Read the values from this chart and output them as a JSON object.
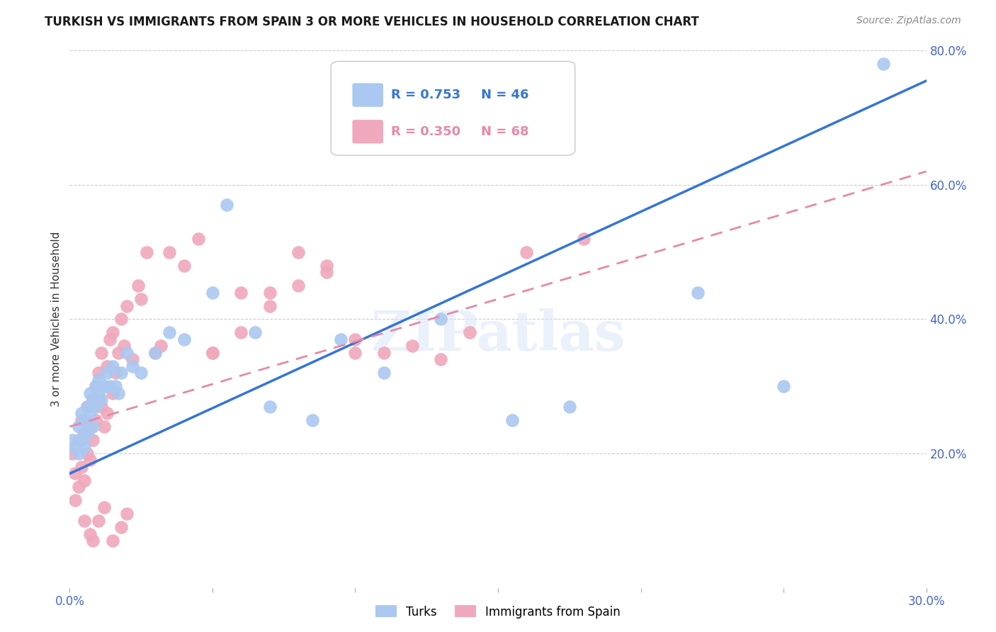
{
  "title": "TURKISH VS IMMIGRANTS FROM SPAIN 3 OR MORE VEHICLES IN HOUSEHOLD CORRELATION CHART",
  "source": "Source: ZipAtlas.com",
  "ylabel_left": "3 or more Vehicles in Household",
  "watermark_text": "ZIPatlas",
  "x_min": 0.0,
  "x_max": 0.3,
  "y_min": 0.0,
  "y_max": 0.8,
  "x_ticks": [
    0.0,
    0.05,
    0.1,
    0.15,
    0.2,
    0.25,
    0.3
  ],
  "x_tick_labels": [
    "0.0%",
    "",
    "",
    "",
    "",
    "",
    "30.0%"
  ],
  "y_ticks_right": [
    0.2,
    0.4,
    0.6,
    0.8
  ],
  "y_tick_labels_right": [
    "20.0%",
    "40.0%",
    "60.0%",
    "80.0%"
  ],
  "grid_color": "#cccccc",
  "background_color": "#ffffff",
  "turks_color": "#aac8f0",
  "spain_color": "#f0a8bc",
  "turks_line_color": "#3575d4",
  "spain_line_color": "#e888a8",
  "turks_R": "0.753",
  "turks_N": "46",
  "spain_R": "0.350",
  "spain_N": "68",
  "legend_label_turks": "Turks",
  "legend_label_spain": "Immigrants from Spain",
  "axis_tick_color": "#4466cc",
  "title_fontsize": 12,
  "turks_line_x0": 0.0,
  "turks_line_y0": 0.17,
  "turks_line_x1": 0.3,
  "turks_line_y1": 0.755,
  "spain_line_x0": 0.0,
  "spain_line_y0": 0.24,
  "spain_line_x1": 0.3,
  "spain_line_y1": 0.62,
  "turks_scatter_x": [
    0.001,
    0.002,
    0.003,
    0.003,
    0.004,
    0.004,
    0.005,
    0.005,
    0.005,
    0.006,
    0.006,
    0.007,
    0.007,
    0.008,
    0.008,
    0.009,
    0.009,
    0.01,
    0.01,
    0.011,
    0.012,
    0.013,
    0.014,
    0.015,
    0.016,
    0.017,
    0.018,
    0.02,
    0.022,
    0.025,
    0.03,
    0.035,
    0.04,
    0.05,
    0.055,
    0.065,
    0.07,
    0.085,
    0.095,
    0.11,
    0.13,
    0.155,
    0.175,
    0.22,
    0.25,
    0.285
  ],
  "turks_scatter_y": [
    0.22,
    0.21,
    0.2,
    0.24,
    0.22,
    0.26,
    0.23,
    0.25,
    0.21,
    0.27,
    0.23,
    0.29,
    0.26,
    0.28,
    0.24,
    0.3,
    0.27,
    0.29,
    0.31,
    0.28,
    0.3,
    0.32,
    0.3,
    0.33,
    0.3,
    0.29,
    0.32,
    0.35,
    0.33,
    0.32,
    0.35,
    0.38,
    0.37,
    0.44,
    0.57,
    0.38,
    0.27,
    0.25,
    0.37,
    0.32,
    0.4,
    0.25,
    0.27,
    0.44,
    0.3,
    0.78
  ],
  "spain_scatter_x": [
    0.001,
    0.002,
    0.002,
    0.003,
    0.003,
    0.004,
    0.004,
    0.005,
    0.005,
    0.006,
    0.006,
    0.007,
    0.007,
    0.008,
    0.008,
    0.009,
    0.009,
    0.01,
    0.01,
    0.011,
    0.011,
    0.012,
    0.012,
    0.013,
    0.013,
    0.014,
    0.015,
    0.015,
    0.016,
    0.017,
    0.018,
    0.019,
    0.02,
    0.022,
    0.024,
    0.025,
    0.027,
    0.03,
    0.032,
    0.035,
    0.04,
    0.045,
    0.05,
    0.06,
    0.07,
    0.08,
    0.09,
    0.1,
    0.12,
    0.14,
    0.05,
    0.06,
    0.07,
    0.08,
    0.09,
    0.1,
    0.11,
    0.13,
    0.16,
    0.18,
    0.005,
    0.007,
    0.008,
    0.01,
    0.012,
    0.015,
    0.018,
    0.02
  ],
  "spain_scatter_y": [
    0.2,
    0.17,
    0.13,
    0.15,
    0.22,
    0.18,
    0.25,
    0.16,
    0.23,
    0.2,
    0.27,
    0.19,
    0.24,
    0.28,
    0.22,
    0.3,
    0.25,
    0.28,
    0.32,
    0.27,
    0.35,
    0.24,
    0.3,
    0.33,
    0.26,
    0.37,
    0.29,
    0.38,
    0.32,
    0.35,
    0.4,
    0.36,
    0.42,
    0.34,
    0.45,
    0.43,
    0.5,
    0.35,
    0.36,
    0.5,
    0.48,
    0.52,
    0.35,
    0.44,
    0.44,
    0.5,
    0.48,
    0.35,
    0.36,
    0.38,
    0.35,
    0.38,
    0.42,
    0.45,
    0.47,
    0.37,
    0.35,
    0.34,
    0.5,
    0.52,
    0.1,
    0.08,
    0.07,
    0.1,
    0.12,
    0.07,
    0.09,
    0.11
  ]
}
